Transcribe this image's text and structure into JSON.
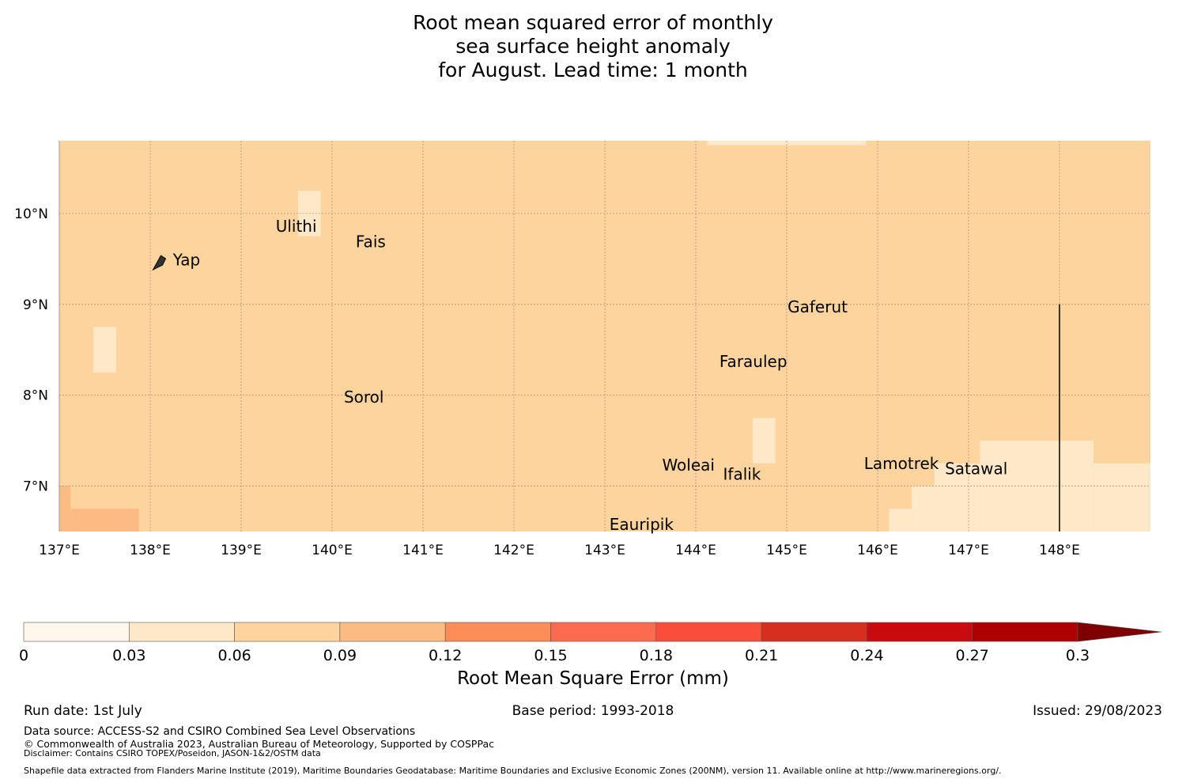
{
  "title_lines": [
    "Root mean squared error of monthly",
    "sea surface height anomaly",
    "for August. Lead time: 1 month"
  ],
  "map": {
    "lon_range": [
      137,
      149
    ],
    "lat_range": [
      6.5,
      10.8
    ],
    "lon_ticks": [
      {
        "value": 137,
        "label": "137°E"
      },
      {
        "value": 138,
        "label": "138°E"
      },
      {
        "value": 139,
        "label": "139°E"
      },
      {
        "value": 140,
        "label": "140°E"
      },
      {
        "value": 141,
        "label": "141°E"
      },
      {
        "value": 142,
        "label": "142°E"
      },
      {
        "value": 143,
        "label": "143°E"
      },
      {
        "value": 144,
        "label": "144°E"
      },
      {
        "value": 145,
        "label": "145°E"
      },
      {
        "value": 146,
        "label": "146°E"
      },
      {
        "value": 147,
        "label": "147°E"
      },
      {
        "value": 148,
        "label": "148°E"
      }
    ],
    "lat_ticks": [
      {
        "value": 10,
        "label": "10°N"
      },
      {
        "value": 9,
        "label": "9°N"
      },
      {
        "value": 8,
        "label": "8°N"
      },
      {
        "value": 7,
        "label": "7°N"
      }
    ],
    "background_bin_color": "#fdd49e",
    "bin_colors": {
      "0-0.03": "#fff7ec",
      "0.03-0.06": "#fee8c8",
      "0.06-0.09": "#fdd49e",
      "0.09-0.12": "#fdbb84"
    },
    "patches": [
      {
        "lon": [
          144.125,
          145.875
        ],
        "lat": [
          10.75,
          10.8
        ],
        "color": "#fee8c8"
      },
      {
        "lon": [
          139.625,
          139.875
        ],
        "lat": [
          9.75,
          10.25
        ],
        "color": "#fee8c8"
      },
      {
        "lon": [
          137.375,
          137.625
        ],
        "lat": [
          8.25,
          8.75
        ],
        "color": "#fee8c8"
      },
      {
        "lon": [
          144.625,
          144.875
        ],
        "lat": [
          7.25,
          7.75
        ],
        "color": "#fee8c8"
      },
      {
        "lon": [
          147.125,
          148.375
        ],
        "lat": [
          6.5,
          7.5
        ],
        "color": "#fee8c8"
      },
      {
        "lon": [
          148.375,
          149.0
        ],
        "lat": [
          6.5,
          7.25
        ],
        "color": "#fee8c8"
      },
      {
        "lon": [
          146.625,
          147.125
        ],
        "lat": [
          6.5,
          7.25
        ],
        "color": "#fee8c8"
      },
      {
        "lon": [
          146.375,
          146.625
        ],
        "lat": [
          6.5,
          7.0
        ],
        "color": "#fee8c8"
      },
      {
        "lon": [
          146.125,
          146.375
        ],
        "lat": [
          6.5,
          6.75
        ],
        "color": "#fee8c8"
      },
      {
        "lon": [
          137.0,
          137.125
        ],
        "lat": [
          6.5,
          7.0
        ],
        "color": "#fdbb84"
      },
      {
        "lon": [
          137.125,
          137.875
        ],
        "lat": [
          6.5,
          6.75
        ],
        "color": "#fdbb84"
      }
    ],
    "boundary_line": {
      "lon": 148.0,
      "lat": [
        6.5,
        9.0
      ]
    },
    "places": [
      {
        "name": "Ulithi",
        "lon": 139.38,
        "lat": 9.86
      },
      {
        "name": "Fais",
        "lon": 140.26,
        "lat": 9.69
      },
      {
        "name": "Yap",
        "lon": 138.25,
        "lat": 9.49
      },
      {
        "name": "Gaferut",
        "lon": 145.01,
        "lat": 8.97
      },
      {
        "name": "Faraulep",
        "lon": 144.26,
        "lat": 8.37
      },
      {
        "name": "Sorol",
        "lon": 140.13,
        "lat": 7.98
      },
      {
        "name": "Woleai",
        "lon": 143.63,
        "lat": 7.23
      },
      {
        "name": "Ifalik",
        "lon": 144.3,
        "lat": 7.13
      },
      {
        "name": "Lamotrek",
        "lon": 145.85,
        "lat": 7.25
      },
      {
        "name": "Satawal",
        "lon": 146.74,
        "lat": 7.19
      },
      {
        "name": "Eauripik",
        "lon": 143.05,
        "lat": 6.58
      }
    ]
  },
  "colorbar": {
    "label": "Root Mean Square Error (mm)",
    "ticks": [
      "0",
      "0.03",
      "0.06",
      "0.09",
      "0.12",
      "0.15",
      "0.18",
      "0.21",
      "0.24",
      "0.27",
      "0.3"
    ],
    "colors": [
      "#fff7ec",
      "#fee8c8",
      "#fdd49e",
      "#fdbb84",
      "#fc8d59",
      "#fc6a4f",
      "#fa4d3a",
      "#d62f1f",
      "#c90b0f",
      "#ae0002"
    ],
    "extend_color": "#7f0000"
  },
  "footer": {
    "run_date": "Run date: 1st July",
    "base_period": "Base period: 1993-2018",
    "issued": "Issued: 29/08/2023",
    "data_source": "Data source: ACCESS-S2 and CSIRO Combined Sea Level Observations",
    "copyright": "© Commonwealth of Australia 2023, Australian Bureau of Meteorology, Supported by COSPPac",
    "disclaimer": "Disclaimer: Contains CSIRO TOPEX/Poseidon, JASON-1&2/OSTM data",
    "shapefile": "Shapefile data extracted from Flanders Marine Institute (2019), Maritime Boundaries Geodatabase: Maritime Boundaries and Exclusive Economic Zones (200NM), version 11. Available online at http://www.marineregions.org/."
  }
}
